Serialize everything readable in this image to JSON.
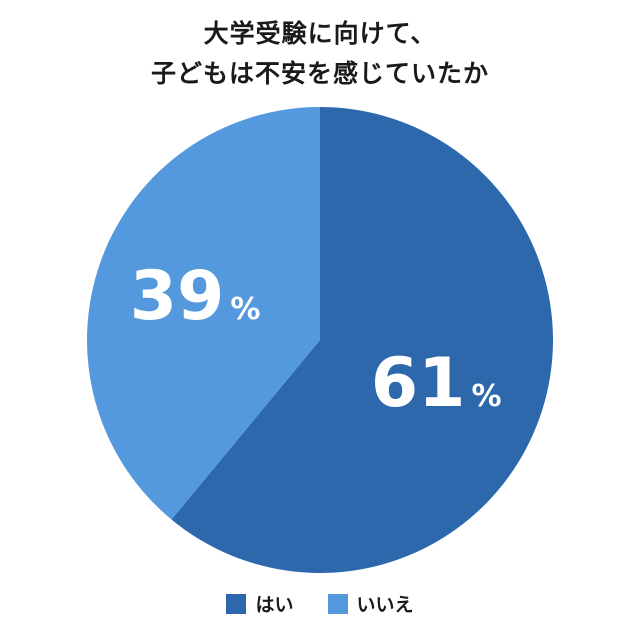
{
  "chart_data": {
    "type": "pie",
    "title": [
      "大学受験に向けて、",
      "子どもは不安を感じていたか"
    ],
    "categories": [
      "はい",
      "いいえ"
    ],
    "values": [
      61,
      39
    ],
    "labels": [
      {
        "number": "61",
        "unit": "%"
      },
      {
        "number": "39",
        "unit": "%"
      }
    ],
    "colors": [
      "#2d68ad",
      "#5499dd"
    ],
    "start_angle": "12 o'clock",
    "direction": "clockwise",
    "legend_position": "bottom"
  }
}
